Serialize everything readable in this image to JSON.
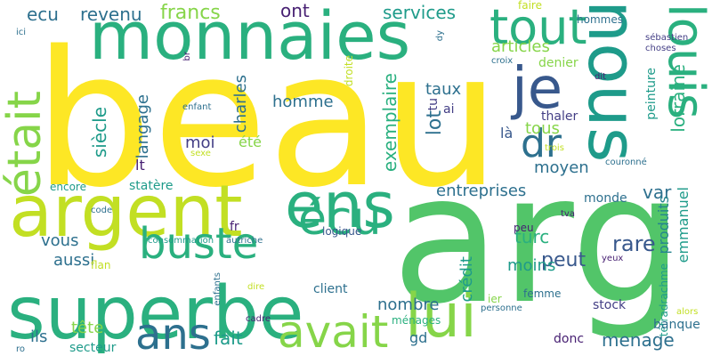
{
  "palette": {
    "yellow": "#fde725",
    "yellow_green": "#c2df23",
    "light_green": "#86d549",
    "green": "#52c569",
    "teal_green": "#2ab07f",
    "teal": "#1e9b8a",
    "blue_teal": "#25858e",
    "steel": "#2d708e",
    "indigo": "#38588c",
    "dark_indigo": "#433e85",
    "purple": "#482173",
    "dark_purple": "#440154"
  },
  "words": [
    "beau",
    "arg",
    "superbe",
    "argent",
    "monnaies",
    "nous",
    "lui",
    "ans",
    "tout",
    "je",
    "était",
    "écu",
    "buste",
    "avait",
    "louis",
    "dr",
    "ens",
    "revenu",
    "ecu",
    "francs",
    "ont",
    "services",
    "articles",
    "denier",
    "hommes",
    "faire",
    "sébastien",
    "choses",
    "croix",
    "dit",
    "lorraine",
    "peinture",
    "couronné",
    "thaler",
    "tous",
    "taux",
    "langage",
    "homme",
    "siècle",
    "charles",
    "moi",
    "été",
    "lt",
    "exemplaire",
    "lot",
    "tu",
    "ai",
    "là",
    "entreprises",
    "var",
    "moyen",
    "emmanuel",
    "produits",
    "tétradrachme",
    "trois",
    "sexe",
    "enfant",
    "encore",
    "statère",
    "monde",
    "code",
    "tva",
    "fr",
    "vous",
    "aussi",
    "turc",
    "rare",
    "peut",
    "moins",
    "consommation",
    "autriche",
    "logique",
    "peu",
    "yeux",
    "flan",
    "client",
    "crédit",
    "ménages",
    "femme",
    "stock",
    "banque",
    "personne",
    "ier",
    "alors",
    "nombre",
    "enfants",
    "dire",
    "cadre",
    "tête",
    "ils",
    "fait",
    "gd",
    "menage",
    "donc",
    "secteur",
    "ro",
    "ici",
    "dy",
    "br",
    "droite"
  ]
}
